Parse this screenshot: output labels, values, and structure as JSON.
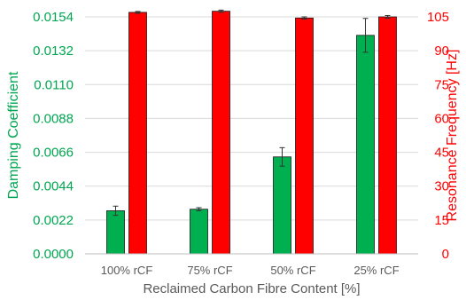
{
  "chart_data": {
    "type": "bar",
    "categories": [
      "100% rCF",
      "75% rCF",
      "50% rCF",
      "25% rCF"
    ],
    "xlabel": "Reclaimed Carbon Fibre Content [%]",
    "series": [
      {
        "name": "Damping Coefficient",
        "axis": "left",
        "color": "#00b050",
        "values": [
          0.0028,
          0.0029,
          0.0063,
          0.0142
        ],
        "errors": [
          0.0003,
          0.0001,
          0.0006,
          0.0011
        ]
      },
      {
        "name": "Resonance Frequency [Hz]",
        "axis": "right",
        "color": "#ff0000",
        "values": [
          107,
          107.5,
          104.5,
          105
        ],
        "errors": [
          0.4,
          0.5,
          0.5,
          0.6
        ]
      }
    ],
    "y_left": {
      "label": "Damping Coefficient",
      "ylim": [
        0,
        0.0154
      ],
      "ticks": [
        "0.0000",
        "0.0022",
        "0.0044",
        "0.0066",
        "0.0088",
        "0.0110",
        "0.0132",
        "0.0154"
      ]
    },
    "y_right": {
      "label": "Resonance Frequency [Hz]",
      "ylim": [
        0,
        105
      ],
      "ticks": [
        "0",
        "15",
        "30",
        "45",
        "60",
        "75",
        "90",
        "105"
      ]
    },
    "grid": true,
    "legend": "none"
  }
}
